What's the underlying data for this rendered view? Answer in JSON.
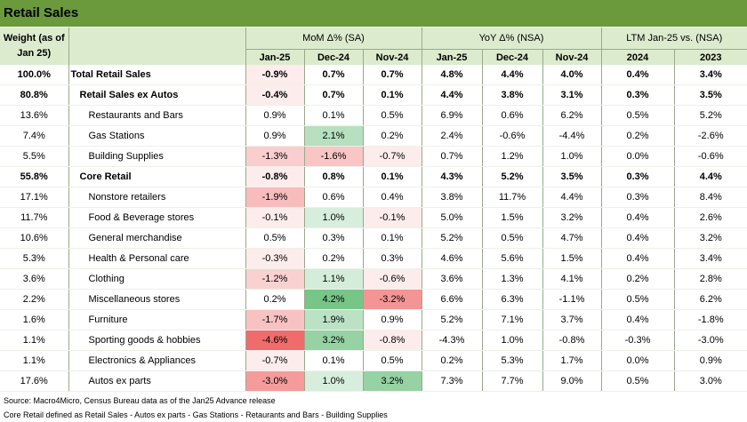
{
  "title": "Retail Sales",
  "header": {
    "weight_label": "Weight (as of Jan 25)",
    "groups": [
      "MoM Δ% (SA)",
      "YoY Δ% (NSA)",
      "LTM Jan-25 vs. (NSA)"
    ],
    "mom_cols": [
      "Jan-25",
      "Dec-24",
      "Nov-24"
    ],
    "yoy_cols": [
      "Jan-25",
      "Dec-24",
      "Nov-24"
    ],
    "ltm_cols": [
      "2024",
      "2023"
    ]
  },
  "rows": [
    {
      "weight": "100.0%",
      "name": "Total Retail Sales",
      "level": 0,
      "mom": [
        "-0.9%",
        "0.7%",
        "0.7%"
      ],
      "yoy": [
        "4.8%",
        "4.4%",
        "4.0%"
      ],
      "ltm": [
        "0.4%",
        "3.4%"
      ]
    },
    {
      "weight": "80.8%",
      "name": "Retail Sales ex Autos",
      "level": 1,
      "mom": [
        "-0.4%",
        "0.7%",
        "0.1%"
      ],
      "yoy": [
        "4.4%",
        "3.8%",
        "3.1%"
      ],
      "ltm": [
        "0.3%",
        "3.5%"
      ]
    },
    {
      "weight": "13.6%",
      "name": "Restaurants and Bars",
      "level": 2,
      "mom": [
        "0.9%",
        "0.1%",
        "0.5%"
      ],
      "yoy": [
        "6.9%",
        "0.6%",
        "6.2%"
      ],
      "ltm": [
        "0.5%",
        "5.2%"
      ]
    },
    {
      "weight": "7.4%",
      "name": "Gas Stations",
      "level": 2,
      "mom": [
        "0.9%",
        "2.1%",
        "0.2%"
      ],
      "yoy": [
        "2.4%",
        "-0.6%",
        "-4.4%"
      ],
      "ltm": [
        "0.2%",
        "-2.6%"
      ]
    },
    {
      "weight": "5.5%",
      "name": "Building Supplies",
      "level": 2,
      "mom": [
        "-1.3%",
        "-1.6%",
        "-0.7%"
      ],
      "yoy": [
        "0.7%",
        "1.2%",
        "1.0%"
      ],
      "ltm": [
        "0.0%",
        "-0.6%"
      ]
    },
    {
      "weight": "55.8%",
      "name": "Core Retail",
      "level": 1,
      "mom": [
        "-0.8%",
        "0.8%",
        "0.1%"
      ],
      "yoy": [
        "4.3%",
        "5.2%",
        "3.5%"
      ],
      "ltm": [
        "0.3%",
        "4.4%"
      ]
    },
    {
      "weight": "17.1%",
      "name": "Nonstore retailers",
      "level": 2,
      "mom": [
        "-1.9%",
        "0.6%",
        "0.4%"
      ],
      "yoy": [
        "3.8%",
        "11.7%",
        "4.4%"
      ],
      "ltm": [
        "0.3%",
        "8.4%"
      ]
    },
    {
      "weight": "11.7%",
      "name": "Food & Beverage stores",
      "level": 2,
      "mom": [
        "-0.1%",
        "1.0%",
        "-0.1%"
      ],
      "yoy": [
        "5.0%",
        "1.5%",
        "3.2%"
      ],
      "ltm": [
        "0.4%",
        "2.6%"
      ]
    },
    {
      "weight": "10.6%",
      "name": "General merchandise",
      "level": 2,
      "mom": [
        "0.5%",
        "0.3%",
        "0.1%"
      ],
      "yoy": [
        "5.2%",
        "0.5%",
        "4.7%"
      ],
      "ltm": [
        "0.4%",
        "3.2%"
      ]
    },
    {
      "weight": "5.3%",
      "name": "Health & Personal care",
      "level": 2,
      "mom": [
        "-0.3%",
        "0.2%",
        "0.3%"
      ],
      "yoy": [
        "4.6%",
        "5.6%",
        "1.5%"
      ],
      "ltm": [
        "0.4%",
        "3.4%"
      ]
    },
    {
      "weight": "3.6%",
      "name": "Clothing",
      "level": 2,
      "mom": [
        "-1.2%",
        "1.1%",
        "-0.6%"
      ],
      "yoy": [
        "3.6%",
        "1.3%",
        "4.1%"
      ],
      "ltm": [
        "0.2%",
        "2.8%"
      ]
    },
    {
      "weight": "2.2%",
      "name": "Miscellaneous stores",
      "level": 2,
      "mom": [
        "0.2%",
        "4.2%",
        "-3.2%"
      ],
      "yoy": [
        "6.6%",
        "6.3%",
        "-1.1%"
      ],
      "ltm": [
        "0.5%",
        "6.2%"
      ]
    },
    {
      "weight": "1.6%",
      "name": "Furniture",
      "level": 2,
      "mom": [
        "-1.7%",
        "1.9%",
        "0.9%"
      ],
      "yoy": [
        "5.2%",
        "7.1%",
        "3.7%"
      ],
      "ltm": [
        "0.4%",
        "-1.8%"
      ]
    },
    {
      "weight": "1.1%",
      "name": "Sporting goods & hobbies",
      "level": 2,
      "mom": [
        "-4.6%",
        "3.2%",
        "-0.8%"
      ],
      "yoy": [
        "-4.3%",
        "1.0%",
        "-0.8%"
      ],
      "ltm": [
        "-0.3%",
        "-3.0%"
      ]
    },
    {
      "weight": "1.1%",
      "name": "Electronics & Appliances",
      "level": 2,
      "mom": [
        "-0.7%",
        "0.1%",
        "0.5%"
      ],
      "yoy": [
        "0.2%",
        "5.3%",
        "1.7%"
      ],
      "ltm": [
        "0.0%",
        "0.9%"
      ]
    },
    {
      "weight": "17.6%",
      "name": "Autos ex parts",
      "level": 2,
      "mom": [
        "-3.0%",
        "1.0%",
        "3.2%"
      ],
      "yoy": [
        "7.3%",
        "7.7%",
        "9.0%"
      ],
      "ltm": [
        "0.5%",
        "3.0%"
      ]
    }
  ],
  "footnotes": {
    "source": "Source: Macro4Micro, Census Bureau    data as of the Jan25 Advance release",
    "definition": "Core Retail defined as Retail Sales - Autos ex parts - Gas Stations - Retaurants and Bars - Building Supplies"
  },
  "colors": {
    "title_bg": "#6a9a3b",
    "header_bg": "#dcebcd",
    "positive_max": "#6cc07e",
    "negative_max": "#f06b6b"
  }
}
